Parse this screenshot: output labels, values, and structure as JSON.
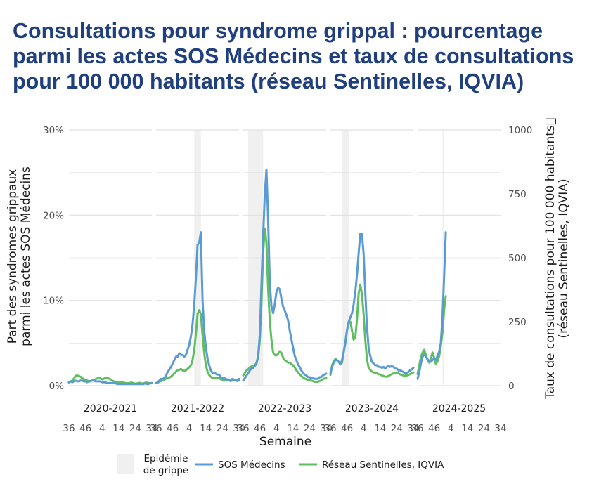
{
  "title_lines": [
    "Consultations pour syndrome grippal : pourcentage",
    "parmi les actes SOS Médecins et taux de consultations",
    "pour 100 000 habitants (réseau Sentinelles, IQVIA)"
  ],
  "chart_data": {
    "type": "line",
    "x_label": "Semaine",
    "y_left_label": [
      "Part des syndromes grippaux",
      "parmi les actes SOS Médecins"
    ],
    "y_right_label": [
      "Taux de consultations pour 100 000 habitants\u0000",
      "(réseau Sentinelles, IQVIA)"
    ],
    "y_left_ticks": [
      "0%",
      "10%",
      "20%",
      "30%"
    ],
    "y_left_tick_values": [
      0,
      10,
      20,
      30
    ],
    "y_left_range": [
      0,
      30
    ],
    "y_right_ticks": [
      "0",
      "250",
      "500",
      "750",
      "1000"
    ],
    "y_right_tick_values": [
      0,
      250,
      500,
      750,
      1000
    ],
    "y_right_range": [
      0,
      1000
    ],
    "x_ticks": [
      "36",
      "46",
      "4",
      "14",
      "24",
      "34"
    ],
    "x_tick_index": [
      0,
      10,
      20,
      30,
      40,
      50
    ],
    "legend": {
      "epidemic_label": [
        "Epidémie",
        "de grippe"
      ],
      "sos_label": "SOS Médecins",
      "sentinelles_label": "Réseau Sentinelles, IQVIA"
    },
    "colors": {
      "sos": "#5b9bd5",
      "sentinelles": "#5fbf5f",
      "epidemic": "#f0f0f0",
      "grid": "#e0e0e0"
    },
    "seasons": [
      {
        "name": "2020-2021",
        "epidemic": null,
        "sos_pct": [
          0.4,
          0.5,
          0.4,
          0.5,
          0.6,
          0.5,
          0.5,
          0.6,
          0.6,
          0.5,
          0.5,
          0.4,
          0.5,
          0.5,
          0.6,
          0.6,
          0.5,
          0.5,
          0.5,
          0.5,
          0.4,
          0.4,
          0.4,
          0.3,
          0.3,
          0.3,
          0.3,
          0.3,
          0.3,
          0.2,
          0.2,
          0.2,
          0.2,
          0.2,
          0.2,
          0.2,
          0.2,
          0.2,
          0.2,
          0.2,
          0.2,
          0.2,
          0.2,
          0.2,
          0.2,
          0.2,
          0.3,
          0.2,
          0.2,
          0.3,
          0.3
        ],
        "sentinelles_rate": [
          12,
          17,
          20,
          28,
          38,
          40,
          38,
          35,
          30,
          25,
          23,
          20,
          18,
          18,
          20,
          22,
          25,
          28,
          30,
          28,
          25,
          27,
          30,
          32,
          28,
          25,
          20,
          17,
          15,
          13,
          12,
          13,
          14,
          12,
          10,
          9,
          10,
          11,
          12,
          9,
          8,
          9,
          10,
          11,
          8,
          9,
          11,
          12,
          10,
          9,
          10
        ]
      },
      {
        "name": "2021-2022",
        "epidemic": [
          23,
          27
        ],
        "sos_pct": [
          0.3,
          0.4,
          0.6,
          0.8,
          0.8,
          0.9,
          1.2,
          1.6,
          1.9,
          2.2,
          2.6,
          3.0,
          3.4,
          3.4,
          3.8,
          3.6,
          3.6,
          3.4,
          3.6,
          4.2,
          4.8,
          5.8,
          7.2,
          9.5,
          12.5,
          16.5,
          16.8,
          18.0,
          10.0,
          6.5,
          4.5,
          3.2,
          2.4,
          1.8,
          1.5,
          1.5,
          1.4,
          1.3,
          1.3,
          1.0,
          0.9,
          0.9,
          0.8,
          0.7,
          0.7,
          0.7,
          0.8,
          0.7,
          0.7,
          0.6,
          0.8
        ],
        "sentinelles_rate": [
          10,
          12,
          15,
          18,
          20,
          24,
          28,
          30,
          32,
          35,
          42,
          48,
          55,
          60,
          62,
          65,
          60,
          58,
          60,
          66,
          72,
          80,
          100,
          140,
          200,
          280,
          295,
          280,
          200,
          130,
          80,
          55,
          42,
          35,
          30,
          28,
          30,
          32,
          30,
          25,
          22,
          20,
          22,
          25,
          20,
          18,
          20,
          22,
          20,
          18,
          20
        ]
      },
      {
        "name": "2022-2023",
        "epidemic": [
          3,
          12
        ],
        "sos_pct": [
          0.6,
          0.9,
          1.2,
          1.5,
          1.8,
          2.0,
          2.1,
          2.3,
          2.6,
          3.5,
          6.0,
          12.0,
          17.5,
          22.5,
          25.3,
          19.5,
          12.0,
          9.3,
          8.5,
          9.5,
          11.0,
          11.5,
          11.3,
          10.2,
          9.3,
          8.8,
          8.3,
          7.7,
          6.5,
          5.5,
          4.5,
          3.5,
          3.0,
          2.5,
          2.2,
          1.8,
          1.5,
          1.3,
          1.2,
          1.0,
          1.0,
          0.9,
          0.9,
          0.8,
          0.8,
          0.8,
          1.0,
          1.0,
          1.2,
          1.3,
          1.4
        ],
        "sentinelles_rate": [
          40,
          50,
          60,
          65,
          72,
          75,
          78,
          80,
          90,
          110,
          180,
          330,
          520,
          615,
          560,
          380,
          250,
          180,
          130,
          120,
          118,
          125,
          135,
          128,
          110,
          100,
          95,
          90,
          90,
          85,
          80,
          72,
          60,
          52,
          45,
          38,
          32,
          28,
          25,
          22,
          22,
          20,
          18,
          15,
          15,
          15,
          18,
          20,
          25,
          28,
          30
        ]
      },
      {
        "name": "2023-2024",
        "epidemic": [
          7,
          11
        ],
        "sos_pct": [
          1.5,
          2.2,
          2.7,
          3.0,
          3.0,
          2.8,
          2.5,
          3.0,
          4.0,
          5.0,
          6.5,
          7.5,
          8.0,
          8.5,
          9.5,
          11.0,
          13.0,
          15.5,
          17.8,
          17.8,
          15.5,
          11.0,
          7.0,
          4.5,
          3.5,
          2.8,
          2.6,
          2.4,
          2.4,
          2.2,
          2.2,
          2.1,
          2.2,
          2.0,
          2.2,
          2.3,
          2.2,
          2.3,
          2.2,
          2.0,
          2.0,
          1.8,
          1.8,
          1.7,
          1.6,
          1.4,
          1.5,
          1.6,
          1.8,
          1.9,
          2.1
        ],
        "sentinelles_rate": [
          42,
          80,
          95,
          105,
          100,
          92,
          85,
          90,
          130,
          170,
          215,
          248,
          250,
          215,
          180,
          188,
          260,
          360,
          395,
          360,
          280,
          180,
          105,
          70,
          62,
          55,
          52,
          50,
          48,
          45,
          44,
          40,
          38,
          35,
          35,
          38,
          42,
          45,
          48,
          50,
          52,
          48,
          44,
          42,
          40,
          38,
          40,
          42,
          45,
          48,
          52
        ]
      },
      {
        "name": "2024-2025",
        "epidemic": [
          15,
          16
        ],
        "sos_pct": [
          0.8,
          1.6,
          2.6,
          3.4,
          3.7,
          3.4,
          3.1,
          2.9,
          2.8,
          3.0,
          3.2,
          3.0,
          3.5,
          4.0,
          5.0,
          8.0,
          13.0,
          18.0
        ],
        "sentinelles_rate": [
          45,
          80,
          110,
          130,
          140,
          120,
          100,
          90,
          105,
          130,
          110,
          85,
          95,
          115,
          155,
          210,
          300,
          350
        ]
      }
    ]
  }
}
